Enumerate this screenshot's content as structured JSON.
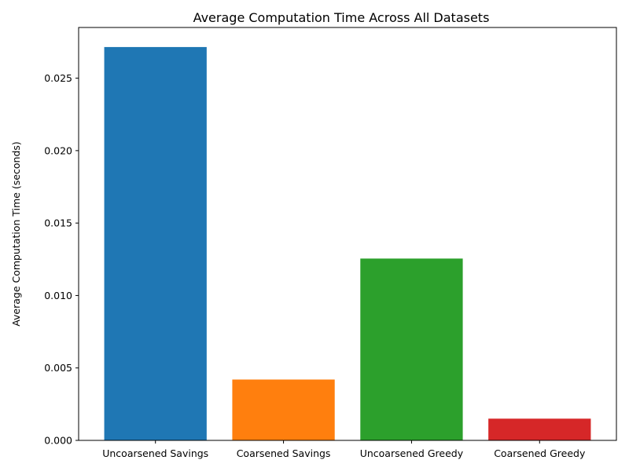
{
  "chart_data": {
    "type": "bar",
    "title": "Average Computation Time Across All Datasets",
    "xlabel": "",
    "ylabel": "Average Computation Time (seconds)",
    "categories": [
      "Uncoarsened Savings",
      "Coarsened Savings",
      "Uncoarsened Greedy",
      "Coarsened Greedy"
    ],
    "values": [
      0.02715,
      0.0042,
      0.01255,
      0.0015
    ],
    "colors": [
      "#1f77b4",
      "#ff7f0e",
      "#2ca02c",
      "#d62728"
    ],
    "ylim": [
      0,
      0.0285
    ],
    "yticks": [
      "0.000",
      "0.005",
      "0.010",
      "0.015",
      "0.020",
      "0.025"
    ],
    "grid": false,
    "legend": "none"
  }
}
